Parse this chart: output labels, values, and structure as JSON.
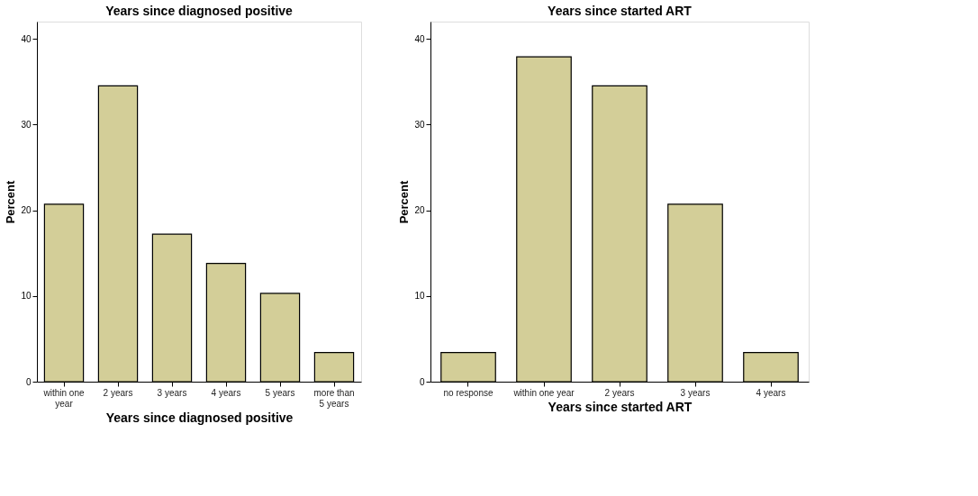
{
  "chart_data": [
    {
      "type": "bar",
      "title": "Years since diagnosed positive",
      "xlabel": "Years since diagnosed positive",
      "ylabel": "Percent",
      "categories": [
        "within one year",
        "2 years",
        "3 years",
        "4 years",
        "5 years",
        "more than 5 years"
      ],
      "values": [
        20.7,
        34.5,
        17.2,
        13.8,
        10.3,
        3.4
      ],
      "color": "#d3ce98",
      "ylim": [
        0,
        42
      ],
      "yticks": [
        0,
        10,
        20,
        30,
        40
      ],
      "grid": false
    },
    {
      "type": "bar",
      "title": "Years since started ART",
      "xlabel": "Years since started ART",
      "ylabel": "Percent",
      "categories": [
        "no response",
        "within one year",
        "2 years",
        "3 years",
        "4 years"
      ],
      "values": [
        3.4,
        37.9,
        34.5,
        20.7,
        3.4
      ],
      "color": "#d3ce98",
      "ylim": [
        0,
        42
      ],
      "yticks": [
        0,
        10,
        20,
        30,
        40
      ],
      "grid": false
    }
  ]
}
